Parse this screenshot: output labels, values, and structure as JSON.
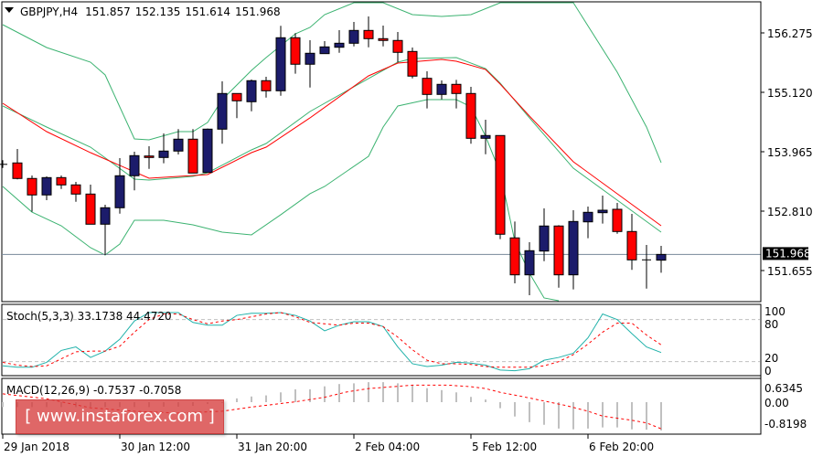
{
  "header": {
    "symbol_label": "GBPJPY,H4",
    "open": "151.857",
    "high": "152.135",
    "low": "151.614",
    "close": "151.968"
  },
  "colors": {
    "bull": "#1c1c6b",
    "bear": "#ff0000",
    "bands": "#3cb371",
    "ma": "#ff0000",
    "stoch_main": "#20b2aa",
    "stoch_signal": "#ff0000",
    "macd_hist": "#c0c0c0",
    "macd_signal": "#ff0000",
    "price_line": "#778899"
  },
  "price_axis": {
    "ticks": [
      "156.275",
      "155.120",
      "153.965",
      "152.810",
      "151.655"
    ],
    "current": "151.968"
  },
  "time_axis": {
    "labels": [
      "29 Jan 2018",
      "30 Jan 12:00",
      "31 Jan 20:00",
      "2 Feb 04:00",
      "5 Feb 12:00",
      "6 Feb 20:00"
    ]
  },
  "stoch": {
    "label": "Stoch(5,3,3) 33.1738 44.4720",
    "axis": [
      "100",
      "80",
      "20",
      "0"
    ],
    "levels": [
      80,
      20
    ]
  },
  "macd": {
    "label": "MACD(12,26,9) -0.7537 -0.7058",
    "axis": [
      "0.6345",
      "0.00",
      "-0.8198"
    ]
  },
  "watermark": "[ www.instaforex.com ]",
  "chart_data": [
    {
      "type": "candlestick",
      "title": "GBPJPY,H4",
      "ylim": [
        151.0,
        156.9
      ],
      "candles_ohlc": [
        [
          153.72,
          153.8,
          153.65,
          153.72
        ],
        [
          153.747,
          154.018,
          153.427,
          153.445
        ],
        [
          153.445,
          153.503,
          152.798,
          153.125
        ],
        [
          153.125,
          153.485,
          153.023,
          153.462
        ],
        [
          153.462,
          153.503,
          153.242,
          153.32
        ],
        [
          153.32,
          153.379,
          152.993,
          153.142
        ],
        [
          153.142,
          153.326,
          152.556,
          152.556
        ],
        [
          152.556,
          152.935,
          151.957,
          152.876
        ],
        [
          152.876,
          153.841,
          152.762,
          153.498
        ],
        [
          153.498,
          153.965,
          153.214,
          153.889
        ],
        [
          153.882,
          154.072,
          153.633,
          153.853
        ],
        [
          153.853,
          154.321,
          153.74,
          153.978
        ],
        [
          153.978,
          154.404,
          153.912,
          154.209
        ],
        [
          154.209,
          154.404,
          153.551,
          153.551
        ],
        [
          153.562,
          154.415,
          153.562,
          154.404
        ],
        [
          154.404,
          155.333,
          154.12,
          155.097
        ],
        [
          155.097,
          155.097,
          154.617,
          154.955
        ],
        [
          154.937,
          155.369,
          154.752,
          155.346
        ],
        [
          155.346,
          155.422,
          155.019,
          155.15
        ],
        [
          155.15,
          156.412,
          155.054,
          156.181
        ],
        [
          156.181,
          156.27,
          155.481,
          155.666
        ],
        [
          155.666,
          156.133,
          155.214,
          155.879
        ],
        [
          155.872,
          156.115,
          155.872,
          156.003
        ],
        [
          155.996,
          156.328,
          155.889,
          156.074
        ],
        [
          156.074,
          156.488,
          156.014,
          156.323
        ],
        [
          156.323,
          156.595,
          155.996,
          156.163
        ],
        [
          156.163,
          156.417,
          156.014,
          156.128
        ],
        [
          156.128,
          156.293,
          155.701,
          155.897
        ],
        [
          155.914,
          155.991,
          155.392,
          155.435
        ],
        [
          155.392,
          155.529,
          154.806,
          155.079
        ],
        [
          155.079,
          155.351,
          154.983,
          155.275
        ],
        [
          155.275,
          155.363,
          154.806,
          155.097
        ],
        [
          155.097,
          155.227,
          154.12,
          154.226
        ],
        [
          154.226,
          154.587,
          153.917,
          154.28
        ],
        [
          154.28,
          154.28,
          152.265,
          152.361
        ],
        [
          152.29,
          152.609,
          151.407,
          151.572
        ],
        [
          151.572,
          152.206,
          151.176,
          152.041
        ],
        [
          152.034,
          152.864,
          151.838,
          152.521
        ],
        [
          152.521,
          152.538,
          151.323,
          151.572
        ],
        [
          151.572,
          152.828,
          151.288,
          152.609
        ],
        [
          152.602,
          152.899,
          152.283,
          152.787
        ],
        [
          152.78,
          153.112,
          152.567,
          152.828
        ],
        [
          152.846,
          152.97,
          152.371,
          152.414
        ],
        [
          152.414,
          152.757,
          151.668,
          151.863
        ],
        [
          151.863,
          152.153,
          151.305,
          151.863
        ],
        [
          151.857,
          152.135,
          151.614,
          151.968
        ]
      ],
      "bollinger_upper": [
        [
          0,
          156.435
        ],
        [
          3,
          155.991
        ],
        [
          6,
          155.706
        ],
        [
          7,
          155.458
        ],
        [
          9,
          154.214
        ],
        [
          10,
          154.196
        ],
        [
          12,
          154.356
        ],
        [
          13,
          154.356
        ],
        [
          14,
          154.533
        ],
        [
          15,
          154.978
        ],
        [
          17,
          155.546
        ],
        [
          18,
          155.795
        ],
        [
          20,
          156.257
        ],
        [
          21,
          156.382
        ],
        [
          22,
          156.63
        ],
        [
          24,
          157.021
        ],
        [
          26,
          156.879
        ],
        [
          28,
          156.63
        ],
        [
          30,
          156.595
        ],
        [
          32,
          156.63
        ],
        [
          34,
          157.021
        ],
        [
          38,
          157.288
        ],
        [
          39,
          156.879
        ],
        [
          42,
          155.511
        ],
        [
          44,
          154.445
        ],
        [
          45,
          153.752
        ]
      ],
      "bollinger_middle": [
        [
          0,
          154.854
        ],
        [
          3,
          154.445
        ],
        [
          6,
          154.054
        ],
        [
          9,
          153.432
        ],
        [
          10,
          153.414
        ],
        [
          13,
          153.485
        ],
        [
          14,
          153.556
        ],
        [
          17,
          154.001
        ],
        [
          18,
          154.125
        ],
        [
          21,
          154.747
        ],
        [
          25,
          155.387
        ],
        [
          27,
          155.706
        ],
        [
          28,
          155.777
        ],
        [
          31,
          155.795
        ],
        [
          33,
          155.582
        ],
        [
          34,
          155.298
        ],
        [
          36,
          154.623
        ],
        [
          39,
          153.645
        ],
        [
          42,
          153.023
        ],
        [
          45,
          152.402
        ]
      ],
      "bollinger_lower": [
        [
          0,
          153.29
        ],
        [
          2,
          152.792
        ],
        [
          4,
          152.526
        ],
        [
          6,
          152.1
        ],
        [
          7,
          151.957
        ],
        [
          8,
          152.171
        ],
        [
          9,
          152.633
        ],
        [
          11,
          152.633
        ],
        [
          13,
          152.544
        ],
        [
          15,
          152.402
        ],
        [
          17,
          152.349
        ],
        [
          19,
          152.74
        ],
        [
          21,
          153.148
        ],
        [
          22,
          153.29
        ],
        [
          25,
          153.876
        ],
        [
          26,
          154.445
        ],
        [
          27,
          154.854
        ],
        [
          29,
          154.978
        ],
        [
          31,
          154.978
        ],
        [
          32,
          154.836
        ],
        [
          33,
          154.267
        ],
        [
          34,
          153.556
        ],
        [
          35,
          152.222
        ],
        [
          36,
          151.603
        ],
        [
          37,
          151.123
        ],
        [
          38,
          150.803
        ]
      ],
      "moving_average": [
        [
          0,
          154.907
        ],
        [
          3,
          154.356
        ],
        [
          6,
          153.947
        ],
        [
          10,
          153.45
        ],
        [
          14,
          153.521
        ],
        [
          17,
          153.947
        ],
        [
          18,
          154.054
        ],
        [
          21,
          154.623
        ],
        [
          25,
          155.44
        ],
        [
          27,
          155.689
        ],
        [
          30,
          155.76
        ],
        [
          31,
          155.724
        ],
        [
          33,
          155.564
        ],
        [
          34,
          155.28
        ],
        [
          36,
          154.658
        ],
        [
          39,
          153.77
        ],
        [
          42,
          153.148
        ],
        [
          45,
          152.526
        ]
      ],
      "current_price": 151.968
    },
    {
      "type": "line",
      "title": "Stoch(5,3,3)",
      "ylim": [
        0,
        100
      ],
      "levels": [
        80,
        20
      ],
      "main": [
        14,
        12,
        12,
        19,
        36,
        41,
        26,
        35,
        52,
        78,
        90,
        90,
        90,
        76,
        72,
        72,
        86,
        89,
        89,
        90,
        86,
        78,
        64,
        72,
        77,
        77,
        70,
        41,
        17,
        13,
        15,
        19,
        18,
        15,
        8,
        7,
        10,
        22,
        26,
        32,
        54,
        88,
        80,
        60,
        41,
        33
      ],
      "signal": [
        19,
        15,
        13,
        14,
        24,
        34,
        35,
        35,
        42,
        62,
        80,
        88,
        88,
        80,
        74,
        78,
        80,
        84,
        88,
        90,
        84,
        76,
        74,
        72,
        75,
        75,
        70,
        55,
        37,
        22,
        17,
        17,
        16,
        13,
        12,
        12,
        12,
        14,
        20,
        30,
        45,
        62,
        75,
        75,
        58,
        44
      ]
    },
    {
      "type": "bar",
      "title": "MACD(12,26,9)",
      "ylim": [
        -0.8198,
        0.6345
      ],
      "histogram": [
        -0.13,
        -0.13,
        -0.13,
        -0.13,
        -0.13,
        -0.13,
        -0.13,
        -0.13,
        -0.13,
        -0.13,
        -0.13,
        -0.12,
        -0.12,
        -0.1,
        -0.05,
        -0.02,
        0.1,
        0.15,
        0.18,
        0.26,
        0.34,
        0.34,
        0.42,
        0.48,
        0.5,
        0.53,
        0.53,
        0.5,
        0.46,
        0.37,
        0.32,
        0.26,
        0.14,
        0.07,
        -0.16,
        -0.38,
        -0.53,
        -0.6,
        -0.7,
        -0.72,
        -0.7,
        -0.67,
        -0.67,
        -0.72,
        -0.73,
        -0.75
      ],
      "signal": [
        [
          0,
          0.22
        ],
        [
          3,
          0.09
        ],
        [
          6,
          -0.15
        ],
        [
          9,
          -0.24
        ],
        [
          12,
          -0.29
        ],
        [
          15,
          -0.24
        ],
        [
          17,
          -0.13
        ],
        [
          20,
          0.01
        ],
        [
          22,
          0.13
        ],
        [
          23.5,
          0.27
        ],
        [
          25,
          0.36
        ],
        [
          27,
          0.42
        ],
        [
          28,
          0.45
        ],
        [
          30.5,
          0.45
        ],
        [
          32,
          0.41
        ],
        [
          33,
          0.36
        ],
        [
          34,
          0.26
        ],
        [
          35.5,
          0.15
        ],
        [
          37,
          0.03
        ],
        [
          38.5,
          -0.09
        ],
        [
          40,
          -0.24
        ],
        [
          41,
          -0.37
        ],
        [
          43,
          -0.48
        ],
        [
          44,
          -0.55
        ],
        [
          45,
          -0.7058
        ]
      ]
    }
  ]
}
